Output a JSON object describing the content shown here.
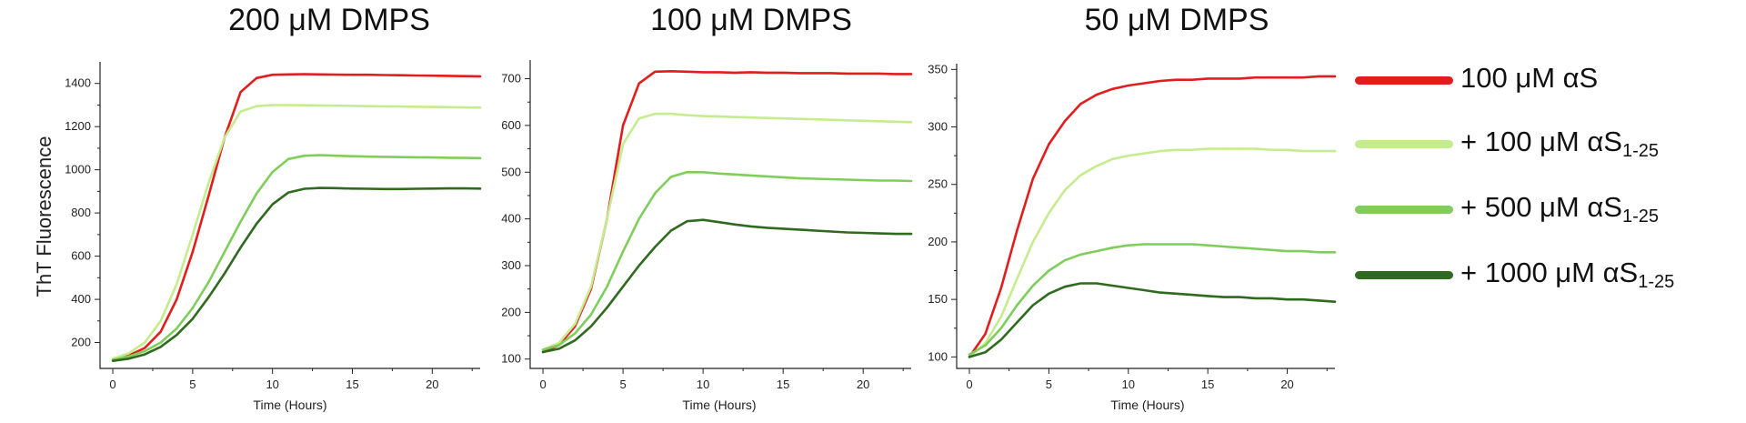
{
  "colors": {
    "series": [
      "#e21d1d",
      "#c5ec8f",
      "#7fce5b",
      "#2f6a1e"
    ]
  },
  "legend": {
    "items": [
      {
        "main": "100 μM αS",
        "sub": ""
      },
      {
        "main": "+ 100 μM αS",
        "sub": "1-25"
      },
      {
        "main": "+ 500 μM αS",
        "sub": "1-25"
      },
      {
        "main": "+ 1000 μM αS",
        "sub": "1-25"
      }
    ]
  },
  "chart_data": [
    {
      "type": "line",
      "title": "200 μM DMPS",
      "xlabel": "Time (Hours)",
      "ylabel": "ThT Fluorescence",
      "xlim": [
        -0.8,
        23
      ],
      "ylim": [
        80,
        1500
      ],
      "xticks": [
        0,
        5,
        10,
        15,
        20
      ],
      "yticks": [
        200,
        400,
        600,
        800,
        1000,
        1200,
        1400
      ],
      "x": [
        0,
        1,
        2,
        3,
        4,
        5,
        6,
        7,
        8,
        9,
        10,
        11,
        12,
        13,
        14,
        15,
        16,
        17,
        18,
        19,
        20,
        21,
        22,
        23
      ],
      "series": [
        {
          "name": "100 μM αS",
          "values": [
            120,
            140,
            175,
            250,
            400,
            620,
            880,
            1150,
            1360,
            1425,
            1440,
            1442,
            1443,
            1442,
            1441,
            1440,
            1440,
            1439,
            1438,
            1437,
            1436,
            1435,
            1434,
            1433
          ]
        },
        {
          "name": "+ 100 μM αS1-25",
          "values": [
            125,
            150,
            200,
            300,
            470,
            700,
            940,
            1150,
            1270,
            1295,
            1300,
            1300,
            1299,
            1298,
            1297,
            1296,
            1295,
            1294,
            1293,
            1292,
            1291,
            1290,
            1289,
            1288
          ]
        },
        {
          "name": "+ 500 μM αS1-25",
          "values": [
            120,
            135,
            160,
            200,
            265,
            360,
            480,
            620,
            760,
            890,
            990,
            1050,
            1065,
            1068,
            1065,
            1063,
            1061,
            1060,
            1059,
            1058,
            1057,
            1056,
            1055,
            1054
          ]
        },
        {
          "name": "+ 1000 μM αS1-25",
          "values": [
            115,
            125,
            145,
            180,
            235,
            310,
            410,
            520,
            640,
            750,
            840,
            895,
            912,
            916,
            915,
            913,
            912,
            911,
            911,
            912,
            913,
            914,
            914,
            913
          ]
        }
      ]
    },
    {
      "type": "line",
      "title": "100 μM DMPS",
      "xlabel": "Time (Hours)",
      "ylabel": "",
      "xlim": [
        -0.8,
        23
      ],
      "ylim": [
        80,
        740
      ],
      "xticks": [
        0,
        5,
        10,
        15,
        20
      ],
      "yticks": [
        100,
        200,
        300,
        400,
        500,
        600,
        700
      ],
      "x": [
        0,
        1,
        2,
        3,
        4,
        5,
        6,
        7,
        8,
        9,
        10,
        11,
        12,
        13,
        14,
        15,
        16,
        17,
        18,
        19,
        20,
        21,
        22,
        23
      ],
      "series": [
        {
          "name": "100 μM αS",
          "values": [
            115,
            130,
            170,
            250,
            400,
            600,
            690,
            715,
            716,
            715,
            714,
            714,
            713,
            714,
            713,
            713,
            712,
            712,
            712,
            711,
            711,
            711,
            710,
            710
          ]
        },
        {
          "name": "+ 100 μM αS1-25",
          "values": [
            120,
            135,
            175,
            255,
            400,
            560,
            615,
            625,
            625,
            622,
            620,
            619,
            618,
            617,
            616,
            615,
            614,
            613,
            612,
            611,
            610,
            609,
            608,
            607
          ]
        },
        {
          "name": "+ 500 μM αS1-25",
          "values": [
            120,
            130,
            155,
            195,
            255,
            330,
            400,
            455,
            490,
            500,
            500,
            497,
            495,
            493,
            491,
            489,
            487,
            486,
            485,
            484,
            483,
            482,
            482,
            481
          ]
        },
        {
          "name": "+ 1000 μM αS1-25",
          "values": [
            115,
            122,
            140,
            170,
            210,
            255,
            300,
            340,
            375,
            395,
            398,
            393,
            388,
            384,
            381,
            379,
            377,
            375,
            373,
            371,
            370,
            369,
            368,
            368
          ]
        }
      ]
    },
    {
      "type": "line",
      "title": "50 μM DMPS",
      "xlabel": "Time (Hours)",
      "ylabel": "",
      "xlim": [
        -0.8,
        23
      ],
      "ylim": [
        90,
        355
      ],
      "xticks": [
        0,
        5,
        10,
        15,
        20
      ],
      "yticks": [
        100,
        150,
        200,
        250,
        300,
        350
      ],
      "x": [
        0,
        1,
        2,
        3,
        4,
        5,
        6,
        7,
        8,
        9,
        10,
        11,
        12,
        13,
        14,
        15,
        16,
        17,
        18,
        19,
        20,
        21,
        22,
        23
      ],
      "series": [
        {
          "name": "100 μM αS",
          "values": [
            100,
            120,
            160,
            210,
            255,
            285,
            305,
            320,
            328,
            333,
            336,
            338,
            340,
            341,
            341,
            342,
            342,
            342,
            343,
            343,
            343,
            343,
            344,
            344
          ]
        },
        {
          "name": "+ 100 μM αS1-25",
          "values": [
            100,
            112,
            135,
            168,
            200,
            225,
            245,
            258,
            266,
            272,
            275,
            277,
            279,
            280,
            280,
            281,
            281,
            281,
            281,
            280,
            280,
            279,
            279,
            279
          ]
        },
        {
          "name": "+ 500 μM αS1-25",
          "values": [
            102,
            110,
            125,
            145,
            162,
            175,
            184,
            189,
            192,
            195,
            197,
            198,
            198,
            198,
            198,
            197,
            196,
            195,
            194,
            193,
            192,
            192,
            191,
            191
          ]
        },
        {
          "name": "+ 1000 μM αS1-25",
          "values": [
            100,
            104,
            115,
            130,
            145,
            155,
            161,
            164,
            164,
            162,
            160,
            158,
            156,
            155,
            154,
            153,
            152,
            152,
            151,
            151,
            150,
            150,
            149,
            148
          ]
        }
      ]
    }
  ]
}
